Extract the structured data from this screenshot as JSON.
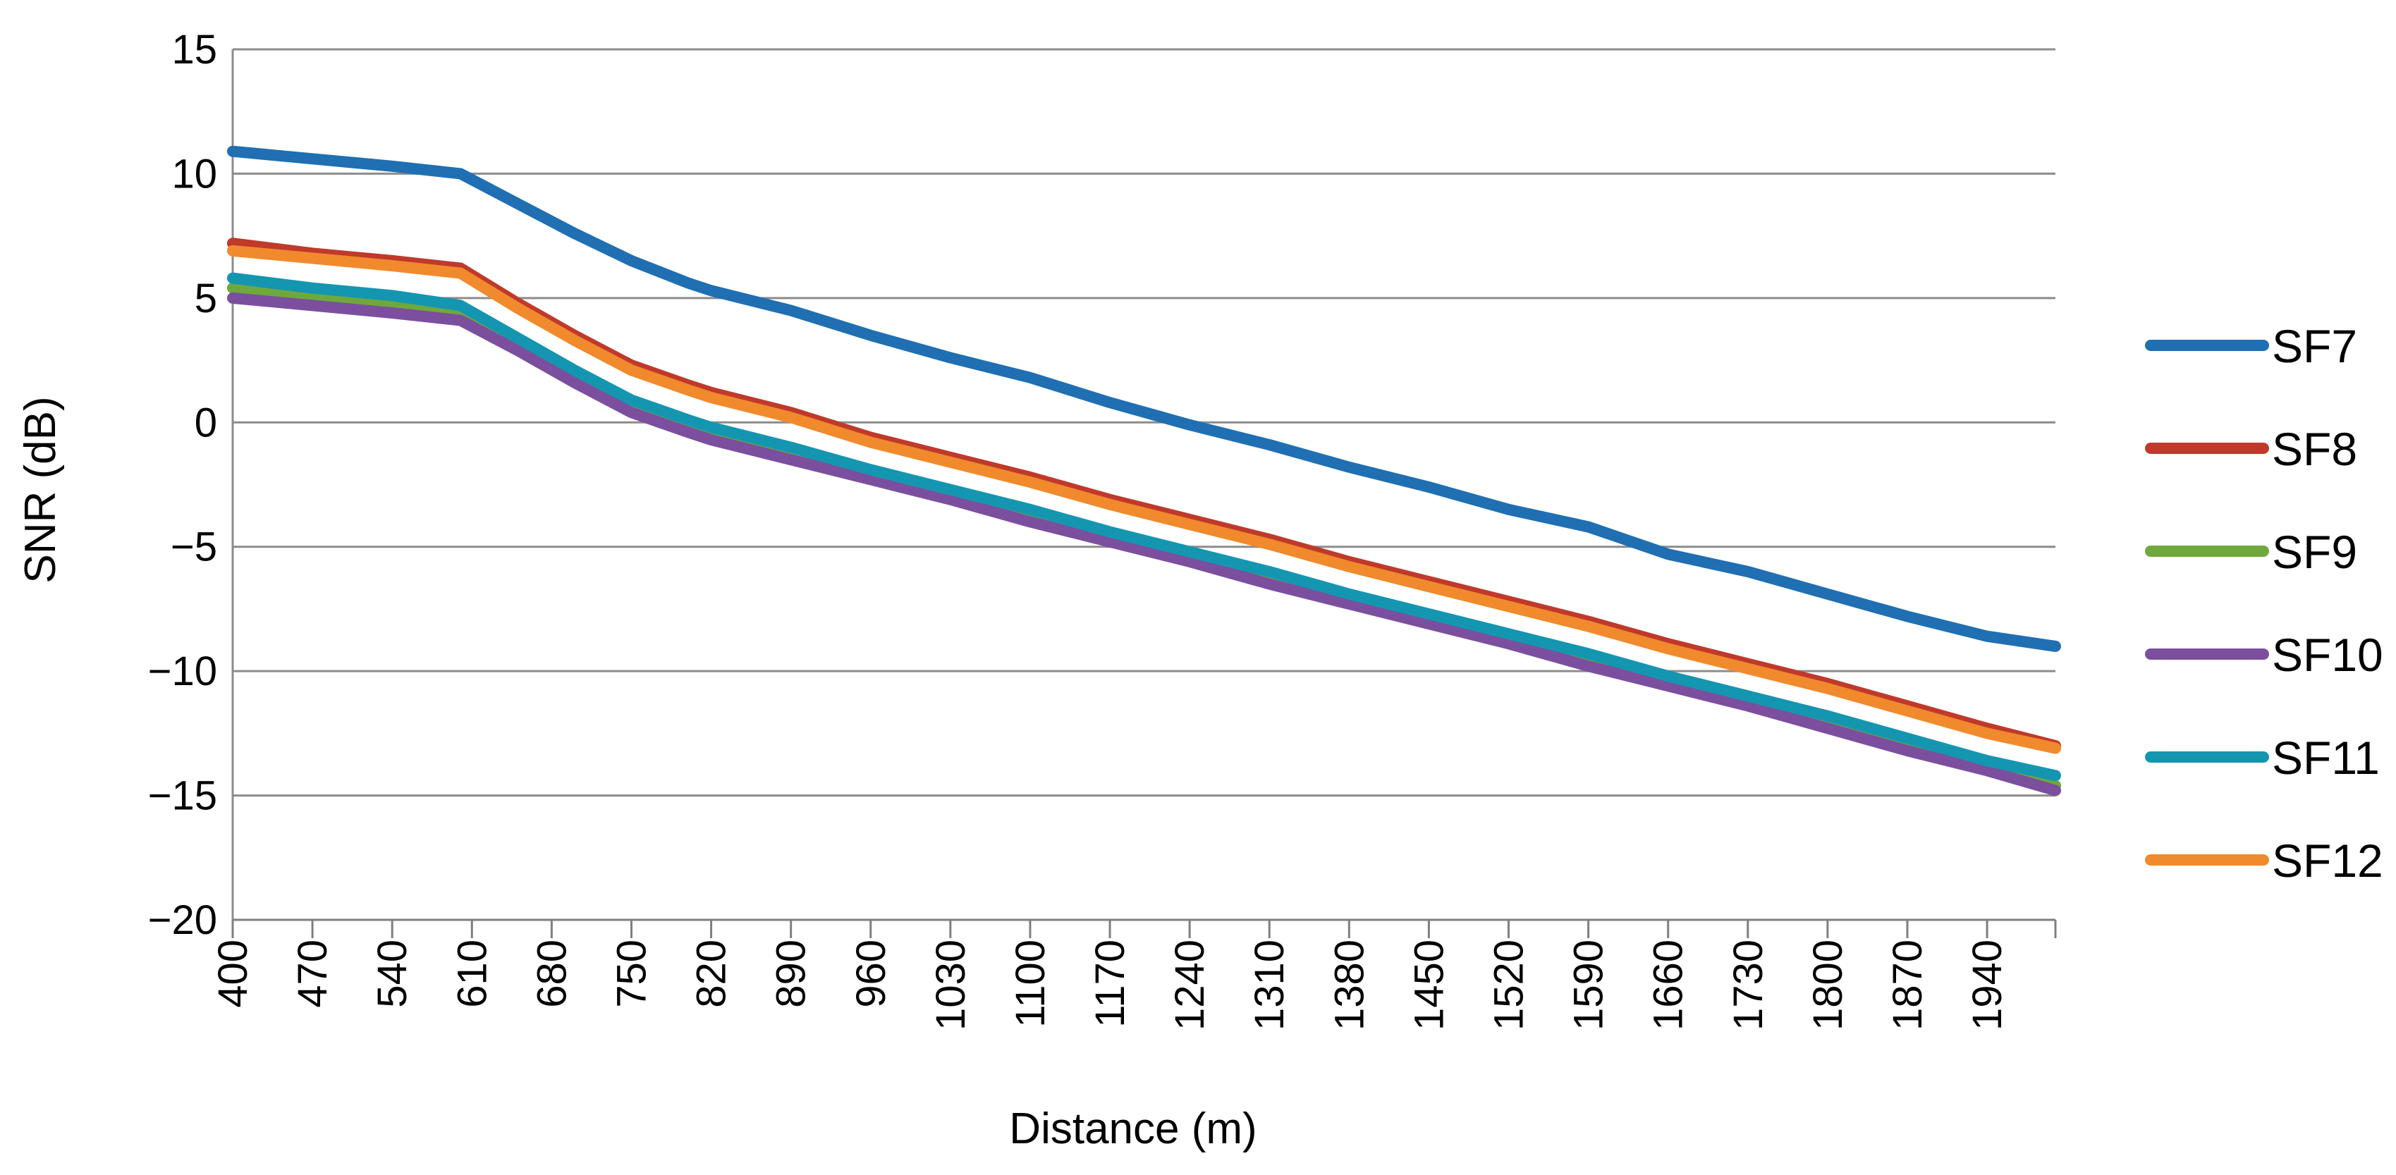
{
  "chart_data": {
    "type": "line",
    "title": "",
    "xlabel": "Distance (m)",
    "ylabel": "SNR (dB)",
    "ylim": [
      -20,
      15
    ],
    "yticks": [
      15,
      10,
      5,
      0,
      -5,
      -10,
      -15,
      -20
    ],
    "ytick_labels": [
      "15",
      "10",
      "5",
      "0",
      "−5",
      "−10",
      "−15",
      "−20"
    ],
    "xlim": [
      400,
      2000
    ],
    "xtick_labels": [
      "400",
      "470",
      "540",
      "610",
      "680",
      "750",
      "820",
      "890",
      "960",
      "1030",
      "1100",
      "1170",
      "1240",
      "1310",
      "1380",
      "1450",
      "1520",
      "1590",
      "1660",
      "1730",
      "1800",
      "1870",
      "1940"
    ],
    "grid": "horizontal",
    "legend": "right",
    "series": [
      {
        "name": "SF7",
        "color": "#1f6fb2",
        "points": [
          [
            400,
            10.9
          ],
          [
            470,
            10.6
          ],
          [
            540,
            10.3
          ],
          [
            600,
            10.0
          ],
          [
            650,
            8.8
          ],
          [
            700,
            7.6
          ],
          [
            750,
            6.5
          ],
          [
            800,
            5.6
          ],
          [
            820,
            5.3
          ],
          [
            890,
            4.5
          ],
          [
            960,
            3.5
          ],
          [
            1030,
            2.6
          ],
          [
            1100,
            1.8
          ],
          [
            1170,
            0.8
          ],
          [
            1240,
            -0.1
          ],
          [
            1310,
            -0.9
          ],
          [
            1380,
            -1.8
          ],
          [
            1450,
            -2.6
          ],
          [
            1520,
            -3.5
          ],
          [
            1590,
            -4.2
          ],
          [
            1660,
            -5.3
          ],
          [
            1730,
            -6.0
          ],
          [
            1800,
            -6.9
          ],
          [
            1870,
            -7.8
          ],
          [
            1940,
            -8.6
          ],
          [
            2000,
            -9.0
          ]
        ]
      },
      {
        "name": "SF8",
        "color": "#c0392b",
        "points": [
          [
            400,
            7.2
          ],
          [
            470,
            6.8
          ],
          [
            540,
            6.5
          ],
          [
            600,
            6.2
          ],
          [
            650,
            4.8
          ],
          [
            700,
            3.5
          ],
          [
            750,
            2.3
          ],
          [
            800,
            1.5
          ],
          [
            820,
            1.2
          ],
          [
            890,
            0.4
          ],
          [
            960,
            -0.6
          ],
          [
            1030,
            -1.4
          ],
          [
            1100,
            -2.2
          ],
          [
            1170,
            -3.1
          ],
          [
            1240,
            -3.9
          ],
          [
            1310,
            -4.7
          ],
          [
            1380,
            -5.6
          ],
          [
            1450,
            -6.4
          ],
          [
            1520,
            -7.2
          ],
          [
            1590,
            -8.0
          ],
          [
            1660,
            -8.9
          ],
          [
            1730,
            -9.7
          ],
          [
            1800,
            -10.5
          ],
          [
            1870,
            -11.4
          ],
          [
            1940,
            -12.3
          ],
          [
            2000,
            -13.0
          ]
        ]
      },
      {
        "name": "SF9",
        "color": "#6fa83c",
        "points": [
          [
            400,
            5.4
          ],
          [
            470,
            5.1
          ],
          [
            540,
            4.8
          ],
          [
            600,
            4.5
          ],
          [
            650,
            3.2
          ],
          [
            700,
            1.9
          ],
          [
            750,
            0.6
          ],
          [
            800,
            -0.2
          ],
          [
            820,
            -0.5
          ],
          [
            890,
            -1.2
          ],
          [
            960,
            -2.1
          ],
          [
            1030,
            -2.9
          ],
          [
            1100,
            -3.7
          ],
          [
            1170,
            -4.6
          ],
          [
            1240,
            -5.4
          ],
          [
            1310,
            -6.2
          ],
          [
            1380,
            -7.1
          ],
          [
            1450,
            -7.9
          ],
          [
            1520,
            -8.7
          ],
          [
            1590,
            -9.5
          ],
          [
            1660,
            -10.4
          ],
          [
            1730,
            -11.2
          ],
          [
            1800,
            -12.0
          ],
          [
            1870,
            -12.9
          ],
          [
            1940,
            -13.8
          ],
          [
            2000,
            -14.6
          ]
        ]
      },
      {
        "name": "SF10",
        "color": "#7b4f9e",
        "points": [
          [
            400,
            5.0
          ],
          [
            470,
            4.7
          ],
          [
            540,
            4.4
          ],
          [
            600,
            4.1
          ],
          [
            650,
            2.9
          ],
          [
            700,
            1.6
          ],
          [
            750,
            0.4
          ],
          [
            800,
            -0.4
          ],
          [
            820,
            -0.7
          ],
          [
            890,
            -1.5
          ],
          [
            960,
            -2.3
          ],
          [
            1030,
            -3.1
          ],
          [
            1100,
            -4.0
          ],
          [
            1170,
            -4.8
          ],
          [
            1240,
            -5.6
          ],
          [
            1310,
            -6.5
          ],
          [
            1380,
            -7.3
          ],
          [
            1450,
            -8.1
          ],
          [
            1520,
            -8.9
          ],
          [
            1590,
            -9.8
          ],
          [
            1660,
            -10.6
          ],
          [
            1730,
            -11.4
          ],
          [
            1800,
            -12.3
          ],
          [
            1870,
            -13.2
          ],
          [
            1940,
            -14.0
          ],
          [
            2000,
            -14.8
          ]
        ]
      },
      {
        "name": "SF11",
        "color": "#1596b0",
        "points": [
          [
            400,
            5.8
          ],
          [
            470,
            5.4
          ],
          [
            540,
            5.1
          ],
          [
            600,
            4.7
          ],
          [
            650,
            3.4
          ],
          [
            700,
            2.1
          ],
          [
            750,
            0.9
          ],
          [
            800,
            0.1
          ],
          [
            820,
            -0.2
          ],
          [
            890,
            -1.0
          ],
          [
            960,
            -1.9
          ],
          [
            1030,
            -2.7
          ],
          [
            1100,
            -3.5
          ],
          [
            1170,
            -4.4
          ],
          [
            1240,
            -5.2
          ],
          [
            1310,
            -6.0
          ],
          [
            1380,
            -6.9
          ],
          [
            1450,
            -7.7
          ],
          [
            1520,
            -8.5
          ],
          [
            1590,
            -9.3
          ],
          [
            1660,
            -10.2
          ],
          [
            1730,
            -11.0
          ],
          [
            1800,
            -11.8
          ],
          [
            1870,
            -12.7
          ],
          [
            1940,
            -13.6
          ],
          [
            2000,
            -14.2
          ]
        ]
      },
      {
        "name": "SF12",
        "color": "#f08a2c",
        "points": [
          [
            400,
            6.9
          ],
          [
            470,
            6.6
          ],
          [
            540,
            6.3
          ],
          [
            600,
            6.0
          ],
          [
            650,
            4.6
          ],
          [
            700,
            3.3
          ],
          [
            750,
            2.1
          ],
          [
            800,
            1.3
          ],
          [
            820,
            1.0
          ],
          [
            890,
            0.2
          ],
          [
            960,
            -0.8
          ],
          [
            1030,
            -1.6
          ],
          [
            1100,
            -2.4
          ],
          [
            1170,
            -3.3
          ],
          [
            1240,
            -4.1
          ],
          [
            1310,
            -4.9
          ],
          [
            1380,
            -5.8
          ],
          [
            1450,
            -6.6
          ],
          [
            1520,
            -7.4
          ],
          [
            1590,
            -8.2
          ],
          [
            1660,
            -9.1
          ],
          [
            1730,
            -9.9
          ],
          [
            1800,
            -10.7
          ],
          [
            1870,
            -11.6
          ],
          [
            1940,
            -12.5
          ],
          [
            2000,
            -13.1
          ]
        ]
      }
    ]
  }
}
